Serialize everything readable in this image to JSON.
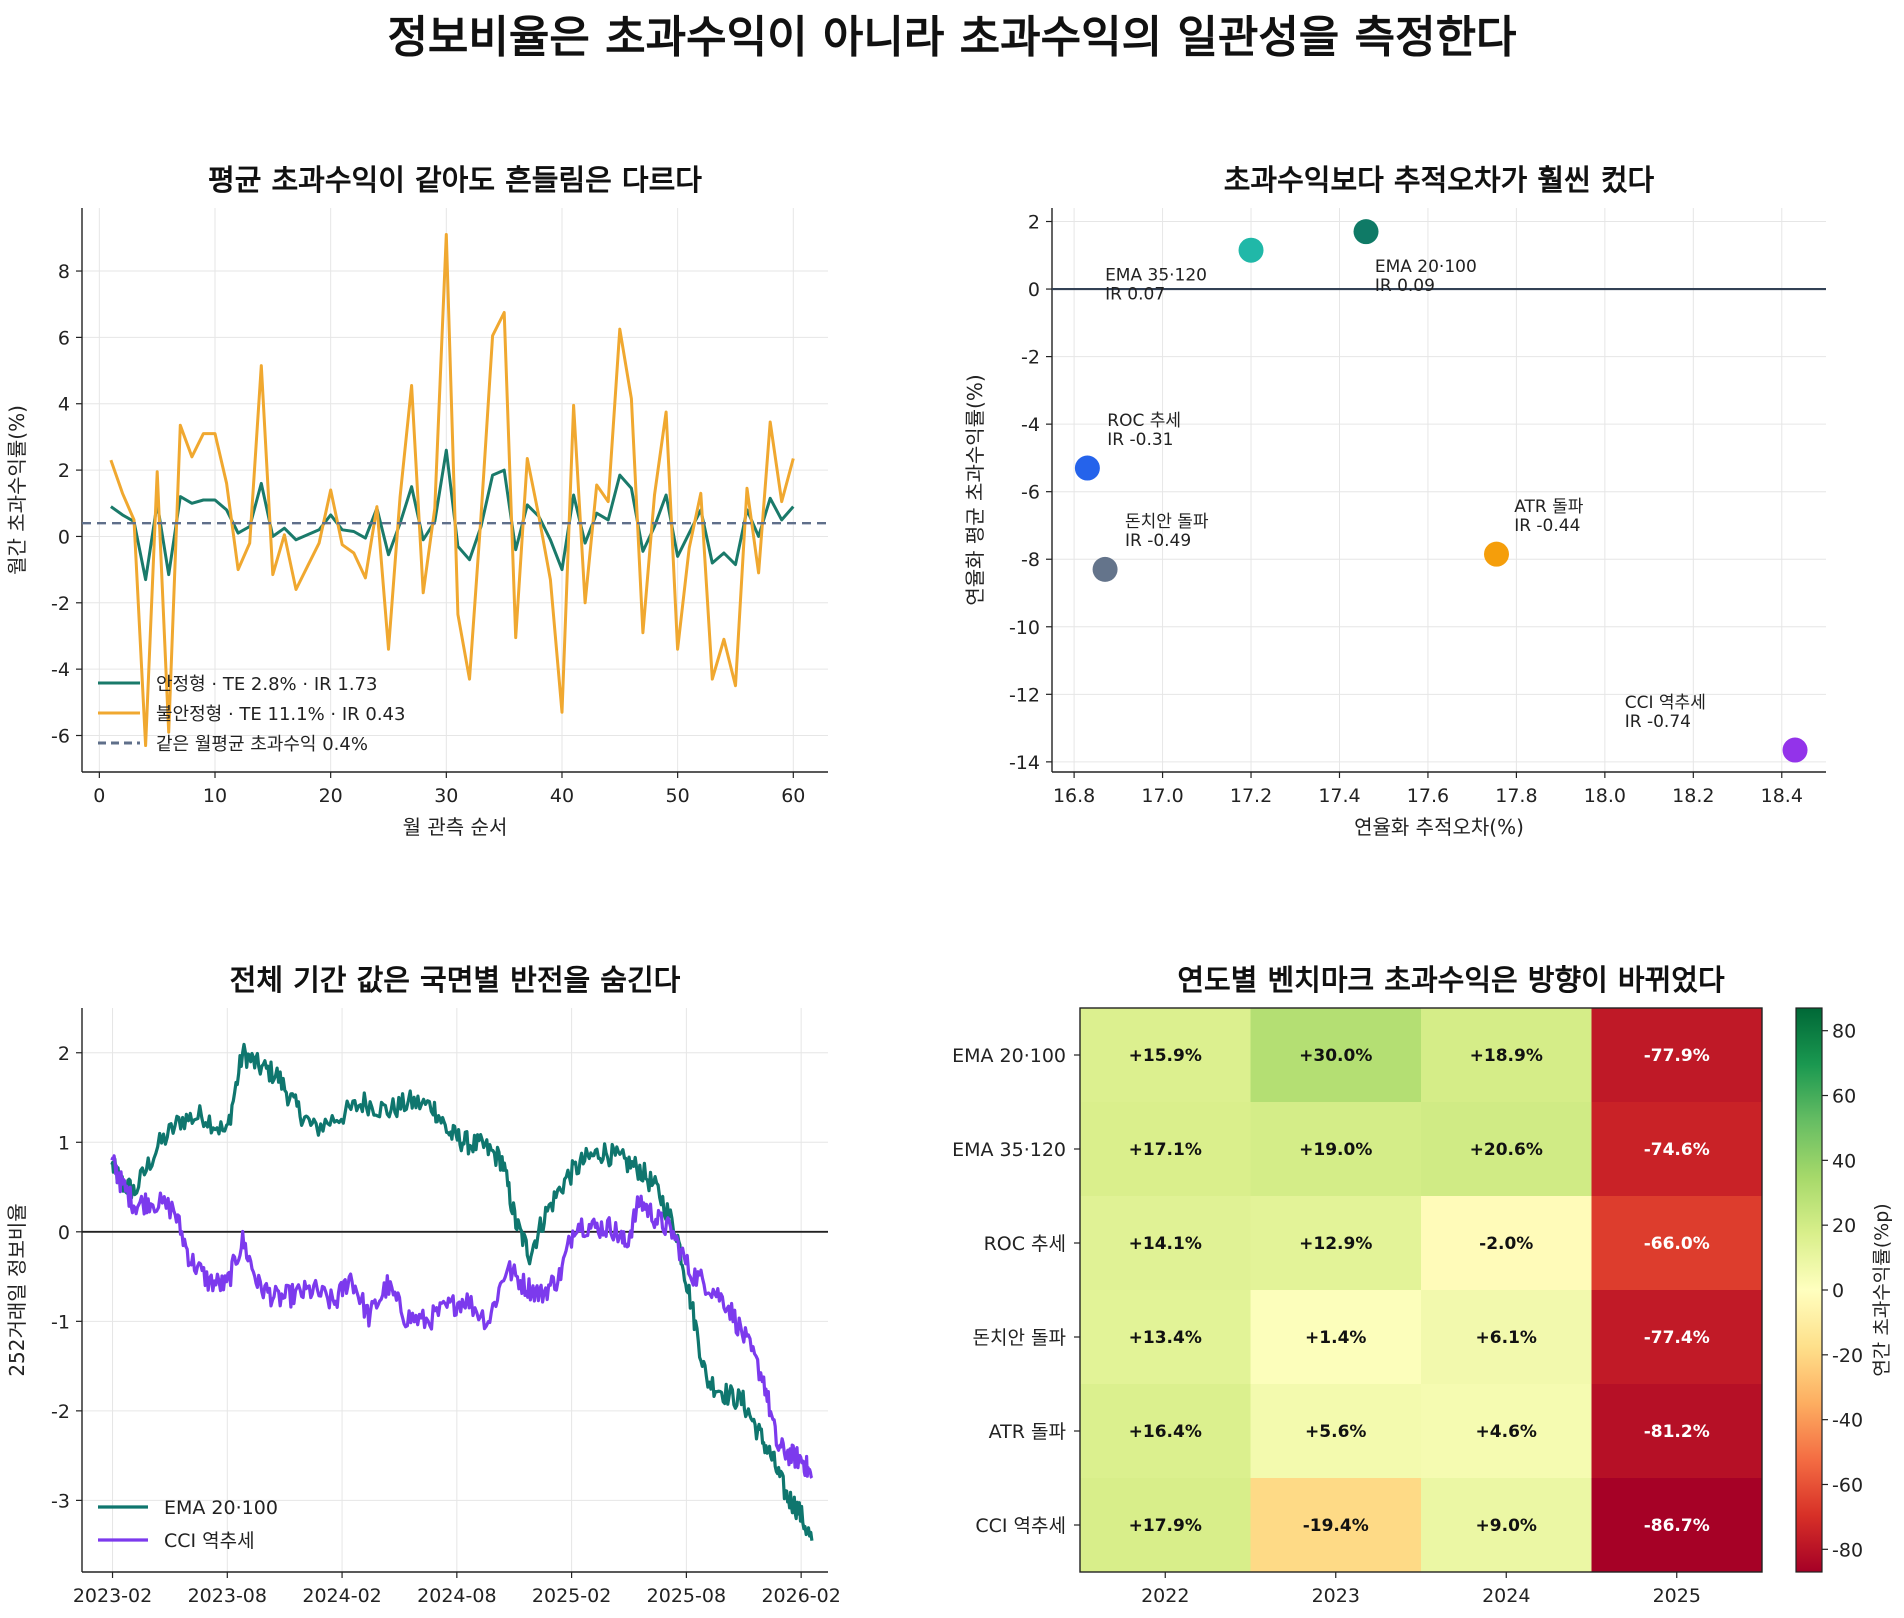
{
  "suptitle": "정보비율은 초과수익이 아니라 초과수익의 일관성을 측정한다",
  "chart_data": [
    {
      "type": "line",
      "title": "평균 초과수익이 같아도 흔들림은 다르다",
      "xlabel": "월 관측 순서",
      "ylabel": "월간 초과수익률(%)",
      "xlim": [
        -1.5,
        63
      ],
      "ylim": [
        -7.1,
        9.9
      ],
      "xticks": [
        0,
        10,
        20,
        30,
        40,
        50,
        60
      ],
      "yticks": [
        -6,
        -4,
        -2,
        0,
        2,
        4,
        6,
        8
      ],
      "grid": true,
      "legend_position": "lower-left",
      "x": [
        1,
        2,
        3,
        4,
        5,
        6,
        7,
        8,
        9,
        10,
        11,
        12,
        13,
        14,
        15,
        16,
        17,
        18,
        19,
        20,
        21,
        22,
        23,
        24,
        25,
        26,
        27,
        28,
        29,
        30,
        31,
        32,
        33,
        34,
        35,
        36,
        37,
        38,
        39,
        40,
        41,
        42,
        43,
        44,
        45,
        46,
        47,
        48,
        49,
        50,
        51,
        52,
        53,
        54,
        55,
        56,
        57,
        58,
        59,
        60
      ],
      "series": [
        {
          "name": "안정형 · TE 2.8% · IR 1.73",
          "color": "#1a7a6a",
          "values": [
            0.9,
            0.65,
            0.45,
            -1.3,
            1.0,
            -1.15,
            1.2,
            1.0,
            1.1,
            1.1,
            0.8,
            0.1,
            0.3,
            1.6,
            0.0,
            0.25,
            -0.1,
            0.05,
            0.2,
            0.65,
            0.2,
            0.15,
            -0.05,
            0.85,
            -0.55,
            0.4,
            1.5,
            -0.1,
            0.45,
            2.6,
            -0.3,
            -0.7,
            0.3,
            1.85,
            2.0,
            -0.4,
            0.95,
            0.6,
            -0.1,
            -1.0,
            1.25,
            -0.2,
            0.7,
            0.5,
            1.85,
            1.45,
            -0.45,
            0.3,
            1.25,
            -0.6,
            0.1,
            0.8,
            -0.8,
            -0.5,
            -0.85,
            0.8,
            0.0,
            1.15,
            0.5,
            0.9
          ]
        },
        {
          "name": "불안정형 · TE 11.1% · IR 0.43",
          "color": "#f0a830",
          "values": [
            2.3,
            1.3,
            0.5,
            -6.3,
            1.95,
            -5.9,
            3.35,
            2.4,
            3.1,
            3.1,
            1.6,
            -1.0,
            -0.2,
            5.15,
            -1.15,
            0.05,
            -1.6,
            -0.9,
            -0.2,
            1.4,
            -0.25,
            -0.5,
            -1.25,
            0.9,
            -3.4,
            1.2,
            4.55,
            -1.7,
            0.85,
            9.1,
            -2.35,
            -4.3,
            0.6,
            6.05,
            6.75,
            -3.05,
            2.35,
            0.6,
            -1.3,
            -5.3,
            3.95,
            -2.0,
            1.55,
            1.05,
            6.25,
            4.15,
            -2.9,
            1.25,
            3.75,
            -3.4,
            -0.35,
            1.3,
            -4.3,
            -3.1,
            -4.5,
            1.45,
            -1.1,
            3.45,
            1.05,
            2.35
          ]
        },
        {
          "name": "같은 월평균 초과수익 0.4%",
          "color": "#5f6f8a",
          "dash": true,
          "const": 0.4
        }
      ]
    },
    {
      "type": "scatter",
      "title": "초과수익보다 추적오차가 훨씬 컸다",
      "xlabel": "연율화 추적오차(%)",
      "ylabel": "연율화 평균 초과수익률(%)",
      "xlim": [
        16.75,
        18.5
      ],
      "ylim": [
        -14.3,
        2.4
      ],
      "xticks": [
        16.8,
        17.0,
        17.2,
        17.4,
        17.6,
        17.8,
        18.0,
        18.2,
        18.4
      ],
      "yticks": [
        -14,
        -12,
        -10,
        -8,
        -6,
        -4,
        -2,
        0,
        2
      ],
      "grid": true,
      "points": [
        {
          "x": 17.46,
          "y": 1.7,
          "color": "#0f7a66",
          "label": [
            "EMA 20·100",
            "IR 0.09"
          ],
          "lx": 17.48,
          "ly": 0.5
        },
        {
          "x": 17.2,
          "y": 1.15,
          "color": "#20b8a8",
          "label": [
            "EMA 35·120",
            "IR 0.07"
          ],
          "lx": 16.87,
          "ly": 0.25
        },
        {
          "x": 16.83,
          "y": -5.3,
          "color": "#2563eb",
          "label": [
            "ROC 추세",
            "IR -0.31"
          ],
          "lx": 16.875,
          "ly": -4.05
        },
        {
          "x": 16.87,
          "y": -8.3,
          "color": "#64748b",
          "label": [
            "돈치안 돌파",
            "IR -0.49"
          ],
          "lx": 16.915,
          "ly": -7.05
        },
        {
          "x": 17.755,
          "y": -7.85,
          "color": "#f59e0b",
          "label": [
            "ATR 돌파",
            "IR -0.44"
          ],
          "lx": 17.795,
          "ly": -6.6
        },
        {
          "x": 18.43,
          "y": -13.65,
          "color": "#9333ea",
          "label": [
            "CCI 역추세",
            "IR -0.74"
          ],
          "lx": 18.045,
          "ly": -12.4
        }
      ]
    },
    {
      "type": "line",
      "title": "전체 기간 값은 국면별 반전을 숨긴다",
      "xlabel": "",
      "ylabel": "252거래일 정보비율",
      "xlim": [
        2022.95,
        2026.2
      ],
      "ylim": [
        -3.8,
        2.5
      ],
      "xticks": [
        2023.083,
        2023.583,
        2024.083,
        2024.583,
        2025.083,
        2025.583,
        2026.083
      ],
      "xtick_labels": [
        "2023-02",
        "2023-08",
        "2024-02",
        "2024-08",
        "2025-02",
        "2025-08",
        "2026-02"
      ],
      "yticks": [
        -3,
        -2,
        -1,
        0,
        1,
        2
      ],
      "grid": true,
      "legend_position": "lower-left",
      "series": [
        {
          "name": "EMA 20·100",
          "color": "#0f766e",
          "anchors": [
            [
              2023.08,
              0.75
            ],
            [
              2023.12,
              0.55
            ],
            [
              2023.18,
              0.45
            ],
            [
              2023.28,
              0.95
            ],
            [
              2023.38,
              1.25
            ],
            [
              2023.48,
              1.3
            ],
            [
              2023.58,
              1.1
            ],
            [
              2023.65,
              2.0
            ],
            [
              2023.72,
              1.85
            ],
            [
              2023.8,
              1.75
            ],
            [
              2023.88,
              1.4
            ],
            [
              2023.96,
              1.15
            ],
            [
              2024.08,
              1.3
            ],
            [
              2024.18,
              1.45
            ],
            [
              2024.28,
              1.35
            ],
            [
              2024.38,
              1.45
            ],
            [
              2024.48,
              1.4
            ],
            [
              2024.55,
              1.1
            ],
            [
              2024.62,
              1.0
            ],
            [
              2024.7,
              0.95
            ],
            [
              2024.78,
              0.8
            ],
            [
              2024.84,
              0.1
            ],
            [
              2024.9,
              -0.25
            ],
            [
              2024.97,
              0.2
            ],
            [
              2025.06,
              0.6
            ],
            [
              2025.14,
              0.8
            ],
            [
              2025.22,
              0.9
            ],
            [
              2025.3,
              0.8
            ],
            [
              2025.38,
              0.7
            ],
            [
              2025.46,
              0.45
            ],
            [
              2025.54,
              0.0
            ],
            [
              2025.6,
              -0.75
            ],
            [
              2025.67,
              -1.65
            ],
            [
              2025.75,
              -1.8
            ],
            [
              2025.83,
              -1.9
            ],
            [
              2025.9,
              -2.25
            ],
            [
              2025.96,
              -2.55
            ],
            [
              2026.02,
              -2.95
            ],
            [
              2026.07,
              -3.1
            ],
            [
              2026.13,
              -3.45
            ]
          ]
        },
        {
          "name": "CCI 역추세",
          "color": "#7c3aed",
          "anchors": [
            [
              2023.08,
              0.8
            ],
            [
              2023.12,
              0.55
            ],
            [
              2023.18,
              0.3
            ],
            [
              2023.25,
              0.35
            ],
            [
              2023.35,
              0.25
            ],
            [
              2023.42,
              -0.3
            ],
            [
              2023.5,
              -0.55
            ],
            [
              2023.58,
              -0.6
            ],
            [
              2023.65,
              -0.1
            ],
            [
              2023.72,
              -0.6
            ],
            [
              2023.8,
              -0.75
            ],
            [
              2023.88,
              -0.7
            ],
            [
              2023.96,
              -0.65
            ],
            [
              2024.05,
              -0.8
            ],
            [
              2024.12,
              -0.5
            ],
            [
              2024.2,
              -0.95
            ],
            [
              2024.28,
              -0.6
            ],
            [
              2024.36,
              -0.95
            ],
            [
              2024.45,
              -1.0
            ],
            [
              2024.54,
              -0.85
            ],
            [
              2024.62,
              -0.75
            ],
            [
              2024.72,
              -1.0
            ],
            [
              2024.8,
              -0.4
            ],
            [
              2024.88,
              -0.6
            ],
            [
              2024.95,
              -0.7
            ],
            [
              2025.03,
              -0.5
            ],
            [
              2025.1,
              0.1
            ],
            [
              2025.18,
              0.05
            ],
            [
              2025.26,
              0.05
            ],
            [
              2025.32,
              -0.15
            ],
            [
              2025.38,
              0.35
            ],
            [
              2025.45,
              0.15
            ],
            [
              2025.52,
              0.0
            ],
            [
              2025.6,
              -0.45
            ],
            [
              2025.68,
              -0.6
            ],
            [
              2025.76,
              -0.8
            ],
            [
              2025.84,
              -1.2
            ],
            [
              2025.92,
              -1.65
            ],
            [
              2025.98,
              -2.4
            ],
            [
              2026.04,
              -2.5
            ],
            [
              2026.09,
              -2.55
            ],
            [
              2026.13,
              -2.75
            ]
          ]
        }
      ]
    },
    {
      "type": "heatmap",
      "title": "연도별 벤치마크 초과수익은 방향이 바뀌었다",
      "rows": [
        "EMA 20·100",
        "EMA 35·120",
        "ROC 추세",
        "돈치안 돌파",
        "ATR 돌파",
        "CCI 역추세"
      ],
      "columns": [
        "2022",
        "2023",
        "2024",
        "2025"
      ],
      "values": [
        [
          15.9,
          30.0,
          18.9,
          -77.9
        ],
        [
          17.1,
          19.0,
          20.6,
          -74.6
        ],
        [
          14.1,
          12.9,
          -2.0,
          -66.0
        ],
        [
          13.4,
          1.4,
          6.1,
          -77.4
        ],
        [
          16.4,
          5.6,
          4.6,
          -81.2
        ],
        [
          17.9,
          -19.4,
          9.0,
          -86.7
        ]
      ],
      "cell_labels": [
        [
          "+15.9%",
          "+30.0%",
          "+18.9%",
          "-77.9%"
        ],
        [
          "+17.1%",
          "+19.0%",
          "+20.6%",
          "-74.6%"
        ],
        [
          "+14.1%",
          "+12.9%",
          "-2.0%",
          "-66.0%"
        ],
        [
          "+13.4%",
          "+1.4%",
          "+6.1%",
          "-77.4%"
        ],
        [
          "+16.4%",
          "+5.6%",
          "+4.6%",
          "-81.2%"
        ],
        [
          "+17.9%",
          "-19.4%",
          "+9.0%",
          "-86.7%"
        ]
      ],
      "colorbar": {
        "label": "연간 초과수익률(%p)",
        "range": [
          -87,
          87
        ],
        "ticks": [
          -80,
          -60,
          -40,
          -20,
          0,
          20,
          40,
          60,
          80
        ],
        "colormap": "RdYlGn"
      }
    }
  ]
}
